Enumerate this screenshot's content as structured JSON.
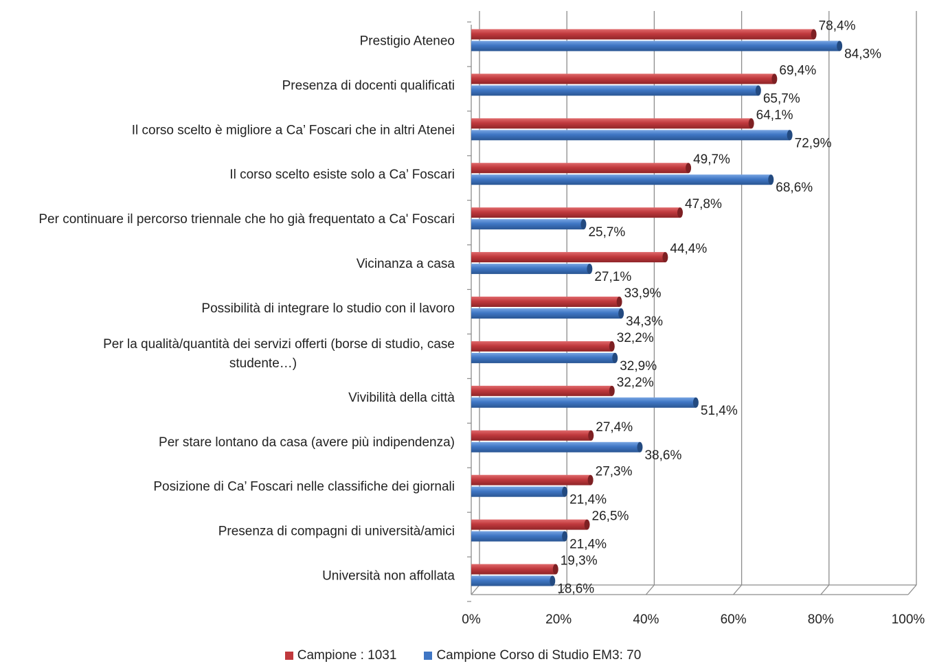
{
  "chart_data": {
    "type": "bar",
    "orientation": "horizontal",
    "categories": [
      "Prestigio Ateneo",
      "Presenza di docenti qualificati",
      "Il corso scelto è migliore a Ca’ Foscari che in altri Atenei",
      "Il corso scelto esiste solo a Ca’ Foscari",
      "Per continuare il percorso triennale che ho già frequentato a Ca' Foscari",
      "Vicinanza a casa",
      "Possibilità di integrare lo studio con il lavoro",
      [
        "Per la qualità/quantità dei servizi offerti (borse di studio, case",
        "studente…)"
      ],
      "Vivibilità della città",
      "Per stare lontano da casa (avere più indipendenza)",
      "Posizione di Ca’ Foscari nelle classifiche dei giornali",
      "Presenza di compagni di università/amici",
      "Università non affollata"
    ],
    "series": [
      {
        "name": "Campione : 1031",
        "color": "#c0393d",
        "values": [
          78.4,
          69.4,
          64.1,
          49.7,
          47.8,
          44.4,
          33.9,
          32.2,
          32.2,
          27.4,
          27.3,
          26.5,
          19.3
        ],
        "labels": [
          "78,4%",
          "69,4%",
          "64,1%",
          "49,7%",
          "47,8%",
          "44,4%",
          "33,9%",
          "32,2%",
          "32,2%",
          "27,4%",
          "27,3%",
          "26,5%",
          "19,3%"
        ]
      },
      {
        "name": "Campione Corso di Studio EM3: 70",
        "color": "#3f76c4",
        "values": [
          84.3,
          65.7,
          72.9,
          68.6,
          25.7,
          27.1,
          34.3,
          32.9,
          51.4,
          38.6,
          21.4,
          21.4,
          18.6
        ],
        "labels": [
          "84,3%",
          "65,7%",
          "72,9%",
          "68,6%",
          "25,7%",
          "27,1%",
          "34,3%",
          "32,9%",
          "51,4%",
          "38,6%",
          "21,4%",
          "21,4%",
          "18,6%"
        ]
      }
    ],
    "xlim": [
      0,
      100
    ],
    "xticks": [
      "0%",
      "20%",
      "40%",
      "60%",
      "80%",
      "100%"
    ],
    "grid": true,
    "legend_position": "bottom"
  }
}
